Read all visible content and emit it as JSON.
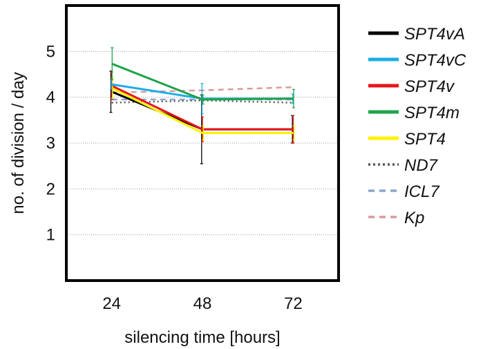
{
  "chart_data": {
    "type": "line",
    "title": "",
    "xlabel": "silencing time [hours]",
    "ylabel": "no. of division / day",
    "x": [
      24,
      48,
      72
    ],
    "x_tick_labels": [
      "24",
      "48",
      "72"
    ],
    "y_ticks": [
      1,
      2,
      3,
      4,
      5
    ],
    "y_tick_labels": [
      "1",
      "2",
      "3",
      "4",
      "5"
    ],
    "xlim": [
      12,
      84
    ],
    "ylim": [
      0,
      6
    ],
    "grid": "horizontal dotted",
    "legend_position": "right",
    "series": [
      {
        "name": "SPT4vA",
        "color": "#000000",
        "style": "solid",
        "values": [
          4.12,
          3.3,
          3.3
        ],
        "errors": [
          0.45,
          0.75,
          0.3
        ]
      },
      {
        "name": "SPT4vC",
        "color": "#1aaee8",
        "style": "solid",
        "values": [
          4.28,
          3.97,
          3.97
        ],
        "errors": [
          0.1,
          0.33,
          0.1
        ]
      },
      {
        "name": "SPT4v",
        "color": "#e8141a",
        "style": "solid",
        "values": [
          4.25,
          3.3,
          3.3
        ],
        "errors": [
          0.3,
          0.27,
          0.3
        ]
      },
      {
        "name": "SPT4m",
        "color": "#1fa34a",
        "style": "solid",
        "values": [
          4.73,
          3.95,
          3.97
        ],
        "errors": [
          0.35,
          0.1,
          0.2
        ]
      },
      {
        "name": "SPT4",
        "color": "#fff200",
        "style": "solid",
        "values": [
          4.2,
          3.22,
          3.22
        ],
        "errors": [
          0.22,
          0.15,
          0.15
        ]
      },
      {
        "name": "ND7",
        "color": "#555555",
        "style": "dotted",
        "values": [
          3.88,
          3.93,
          3.88
        ],
        "errors": [
          0.05,
          0.05,
          0.05
        ]
      },
      {
        "name": "ICL7",
        "color": "#89a6cc",
        "style": "dashed",
        "values": [
          3.95,
          3.95,
          3.95
        ],
        "errors": [
          0.05,
          0.05,
          0.05
        ]
      },
      {
        "name": "Kp",
        "color": "#d99a9a",
        "style": "dashed",
        "values": [
          4.1,
          4.15,
          4.22
        ],
        "errors": [
          0.05,
          0.05,
          0.05
        ]
      }
    ]
  }
}
